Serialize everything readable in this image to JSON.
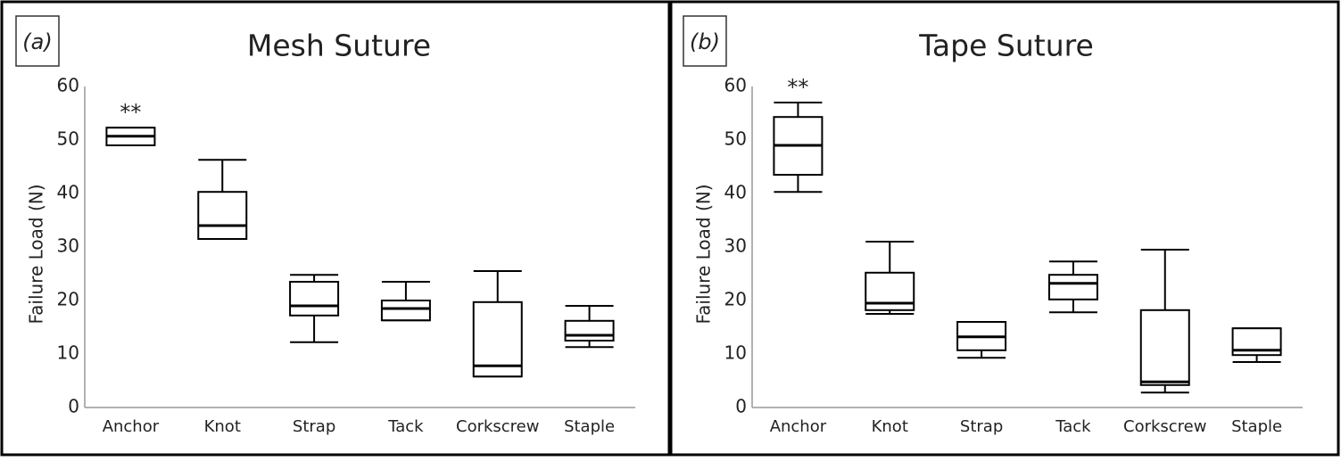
{
  "chart_data": [
    {
      "type": "box",
      "panel_label": "(a)",
      "title": "Mesh Suture",
      "y_label": "Failure Load (N)",
      "annotation": "**",
      "categories": [
        "Anchor",
        "Knot",
        "Strap",
        "Tack",
        "Corkscrew",
        "Staple"
      ],
      "min": [
        49,
        31.5,
        12.2,
        16.3,
        5.8,
        11.3
      ],
      "q1": [
        49,
        31.5,
        17.2,
        16.3,
        5.8,
        12.5
      ],
      "median": [
        50.7,
        34,
        19,
        18.5,
        7.8,
        13.5
      ],
      "q3": [
        52.3,
        40.3,
        23.5,
        20,
        19.7,
        16.2
      ],
      "max": [
        52.3,
        46.3,
        24.8,
        23.5,
        25.5,
        19
      ],
      "ylim": [
        0,
        60
      ],
      "yticks": [
        0,
        10,
        20,
        30,
        40,
        50,
        60
      ],
      "color": "#000000"
    },
    {
      "type": "box",
      "panel_label": "(b)",
      "title": "Tape Suture",
      "y_label": "Failure Load (N)",
      "annotation": "**",
      "categories": [
        "Anchor",
        "Knot",
        "Strap",
        "Tack",
        "Corkscrew",
        "Staple"
      ],
      "min": [
        40.3,
        17.5,
        9.3,
        17.8,
        2.8,
        8.5
      ],
      "q1": [
        43.5,
        18.2,
        10.7,
        20.2,
        4.2,
        9.8
      ],
      "median": [
        49,
        19.5,
        13.2,
        23.2,
        4.8,
        10.7
      ],
      "q3": [
        54.3,
        25.2,
        16,
        24.8,
        18.2,
        14.8
      ],
      "max": [
        57,
        31,
        16,
        27.3,
        29.5,
        14.8
      ],
      "ylim": [
        0,
        60
      ],
      "yticks": [
        0,
        10,
        20,
        30,
        40,
        50,
        60
      ],
      "color": "#000000"
    }
  ]
}
